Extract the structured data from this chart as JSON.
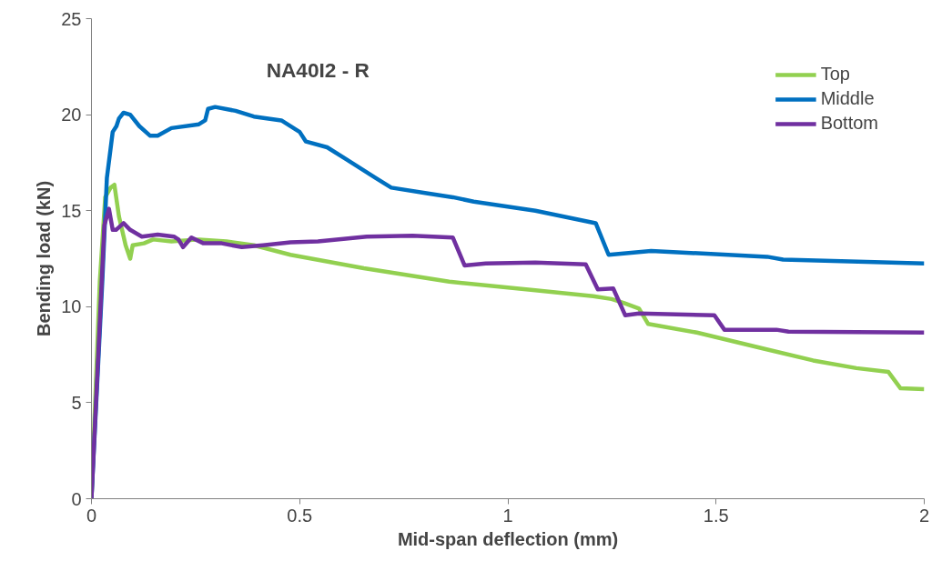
{
  "chart_data": {
    "type": "line",
    "title": "NA40I2 - R",
    "xlabel": "Mid-span deflection (mm)",
    "ylabel": "Bending load (kN)",
    "xlim": [
      0,
      2
    ],
    "ylim": [
      0,
      25
    ],
    "xticks": [
      0,
      0.5,
      1,
      1.5,
      2
    ],
    "yticks": [
      0,
      5,
      10,
      15,
      20,
      25
    ],
    "grid": false,
    "legend": "top right",
    "marker": "none",
    "line_style": "solid",
    "series": [
      {
        "name": "Top",
        "color": "#92d050",
        "x": [
          0,
          0.02,
          0.033,
          0.046,
          0.055,
          0.066,
          0.082,
          0.093,
          0.099,
          0.126,
          0.148,
          0.192,
          0.258,
          0.324,
          0.39,
          0.478,
          0.654,
          0.859,
          1.066,
          1.205,
          1.249,
          1.278,
          1.315,
          1.337,
          1.454,
          1.617,
          1.733,
          1.837,
          1.914,
          1.943,
          2.0
        ],
        "values": [
          0,
          11.3,
          15.7,
          16.2,
          16.35,
          14.7,
          13.2,
          12.5,
          13.2,
          13.3,
          13.5,
          13.4,
          13.5,
          13.4,
          13.2,
          12.7,
          12.0,
          11.3,
          10.85,
          10.55,
          10.4,
          10.2,
          9.9,
          9.1,
          8.65,
          7.8,
          7.2,
          6.8,
          6.6,
          5.75,
          5.7
        ]
      },
      {
        "name": "Middle",
        "color": "#0070c0",
        "x": [
          0,
          0.026,
          0.037,
          0.051,
          0.06,
          0.066,
          0.077,
          0.093,
          0.115,
          0.141,
          0.159,
          0.192,
          0.258,
          0.273,
          0.28,
          0.297,
          0.346,
          0.39,
          0.456,
          0.5,
          0.515,
          0.566,
          0.61,
          0.683,
          0.72,
          0.808,
          0.868,
          0.918,
          1.066,
          1.211,
          1.242,
          1.344,
          1.623,
          1.661,
          2.0
        ],
        "values": [
          0,
          11.3,
          16.7,
          19.1,
          19.4,
          19.8,
          20.1,
          20.0,
          19.4,
          18.9,
          18.9,
          19.3,
          19.5,
          19.7,
          20.3,
          20.4,
          20.2,
          19.9,
          19.7,
          19.1,
          18.6,
          18.3,
          17.7,
          16.7,
          16.2,
          15.9,
          15.7,
          15.47,
          15.0,
          14.35,
          12.7,
          12.9,
          12.6,
          12.45,
          12.25
        ]
      },
      {
        "name": "Bottom",
        "color": "#7030a0",
        "x": [
          0,
          0.031,
          0.042,
          0.051,
          0.059,
          0.077,
          0.093,
          0.121,
          0.159,
          0.198,
          0.209,
          0.22,
          0.24,
          0.269,
          0.313,
          0.361,
          0.412,
          0.478,
          0.544,
          0.661,
          0.771,
          0.868,
          0.896,
          0.947,
          1.066,
          1.187,
          1.216,
          1.253,
          1.282,
          1.315,
          1.496,
          1.52,
          1.645,
          1.674,
          2.0
        ],
        "values": [
          0,
          14.25,
          15.1,
          14.0,
          14.0,
          14.35,
          14.0,
          13.65,
          13.75,
          13.65,
          13.5,
          13.1,
          13.6,
          13.3,
          13.3,
          13.1,
          13.2,
          13.35,
          13.4,
          13.65,
          13.7,
          13.6,
          12.15,
          12.25,
          12.3,
          12.2,
          10.9,
          10.95,
          9.55,
          9.65,
          9.55,
          8.8,
          8.8,
          8.7,
          8.65
        ]
      }
    ]
  }
}
